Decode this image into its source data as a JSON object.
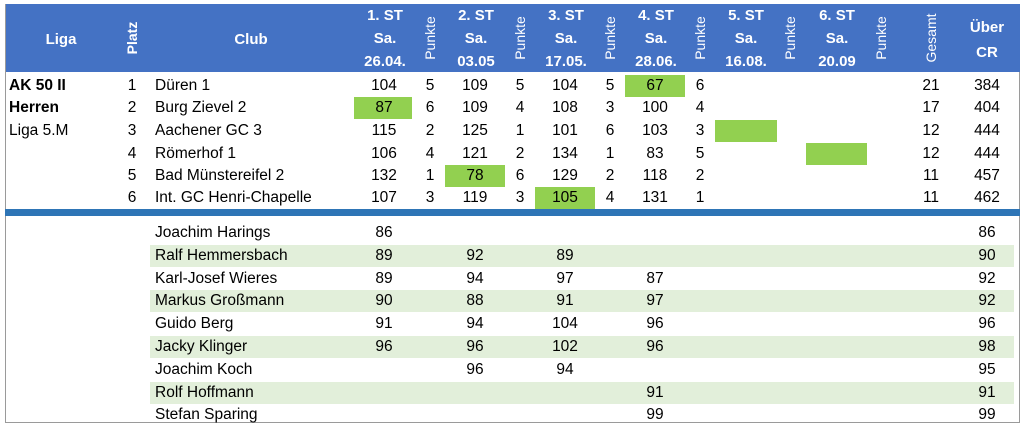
{
  "header": {
    "liga": "Liga",
    "platz": "Platz",
    "club": "Club",
    "punkte": "Punkte",
    "gesamt": "Gesamt",
    "ueber_cr_line1": "Über",
    "ueber_cr_line2": "CR",
    "rounds": [
      {
        "label": "1. ST",
        "day": "Sa.",
        "date": "26.04."
      },
      {
        "label": "2. ST",
        "day": "Sa.",
        "date": "03.05"
      },
      {
        "label": "3. ST",
        "day": "Sa.",
        "date": "17.05."
      },
      {
        "label": "4. ST",
        "day": "Sa.",
        "date": "28.06."
      },
      {
        "label": "5. ST",
        "day": "Sa.",
        "date": "16.08."
      },
      {
        "label": "6. ST",
        "day": "Sa.",
        "date": "20.09"
      }
    ]
  },
  "league": {
    "line1": "AK 50 II",
    "line2": "Herren",
    "line3": "Liga 5.M"
  },
  "teams": [
    {
      "platz": "1",
      "club": "Düren 1",
      "scores": [
        "104",
        "109",
        "104",
        "67",
        "",
        ""
      ],
      "punkte": [
        "5",
        "5",
        "5",
        "6",
        "",
        ""
      ],
      "gesamt": "21",
      "cr": "384"
    },
    {
      "platz": "2",
      "club": "Burg Zievel 2",
      "scores": [
        "87",
        "109",
        "108",
        "100",
        "",
        ""
      ],
      "punkte": [
        "6",
        "4",
        "3",
        "4",
        "",
        ""
      ],
      "gesamt": "17",
      "cr": "404"
    },
    {
      "platz": "3",
      "club": "Aachener GC 3",
      "scores": [
        "115",
        "125",
        "101",
        "103",
        "",
        ""
      ],
      "punkte": [
        "2",
        "1",
        "6",
        "3",
        "",
        ""
      ],
      "gesamt": "12",
      "cr": "444"
    },
    {
      "platz": "4",
      "club": "Römerhof 1",
      "scores": [
        "106",
        "121",
        "134",
        "83",
        "",
        ""
      ],
      "punkte": [
        "4",
        "2",
        "1",
        "5",
        "",
        ""
      ],
      "gesamt": "12",
      "cr": "444"
    },
    {
      "platz": "5",
      "club": "Bad Münstereifel 2",
      "scores": [
        "132",
        "78",
        "129",
        "118",
        "",
        ""
      ],
      "punkte": [
        "1",
        "6",
        "2",
        "2",
        "",
        ""
      ],
      "gesamt": "11",
      "cr": "457"
    },
    {
      "platz": "6",
      "club": "Int. GC Henri-Chapelle",
      "scores": [
        "107",
        "119",
        "105",
        "131",
        "",
        ""
      ],
      "punkte": [
        "3",
        "3",
        "4",
        "1",
        "",
        ""
      ],
      "gesamt": "11",
      "cr": "462"
    }
  ],
  "colors": {
    "header": "#4472c4",
    "highlight": "#92d050",
    "band": "#e2efda",
    "divider": "#2e75b6"
  },
  "players": [
    {
      "name": "Joachim Harings",
      "scores": [
        "86",
        "",
        "",
        ""
      ],
      "cr": "86"
    },
    {
      "name": "Ralf Hemmersbach",
      "scores": [
        "89",
        "92",
        "89",
        ""
      ],
      "cr": "90"
    },
    {
      "name": "Karl-Josef Wieres",
      "scores": [
        "89",
        "94",
        "97",
        "87"
      ],
      "cr": "92"
    },
    {
      "name": "Markus Großmann",
      "scores": [
        "90",
        "88",
        "91",
        "97"
      ],
      "cr": "92"
    },
    {
      "name": "Guido Berg",
      "scores": [
        "91",
        "94",
        "104",
        "96"
      ],
      "cr": "96"
    },
    {
      "name": "Jacky Klinger",
      "scores": [
        "96",
        "96",
        "102",
        "96"
      ],
      "cr": "98"
    },
    {
      "name": "Joachim Koch",
      "scores": [
        "",
        "96",
        "94",
        ""
      ],
      "cr": "95"
    },
    {
      "name": "Rolf Hoffmann",
      "scores": [
        "",
        "",
        "",
        "91"
      ],
      "cr": "91"
    },
    {
      "name": "Stefan Sparing",
      "scores": [
        "",
        "",
        "",
        "99"
      ],
      "cr": "99"
    }
  ]
}
